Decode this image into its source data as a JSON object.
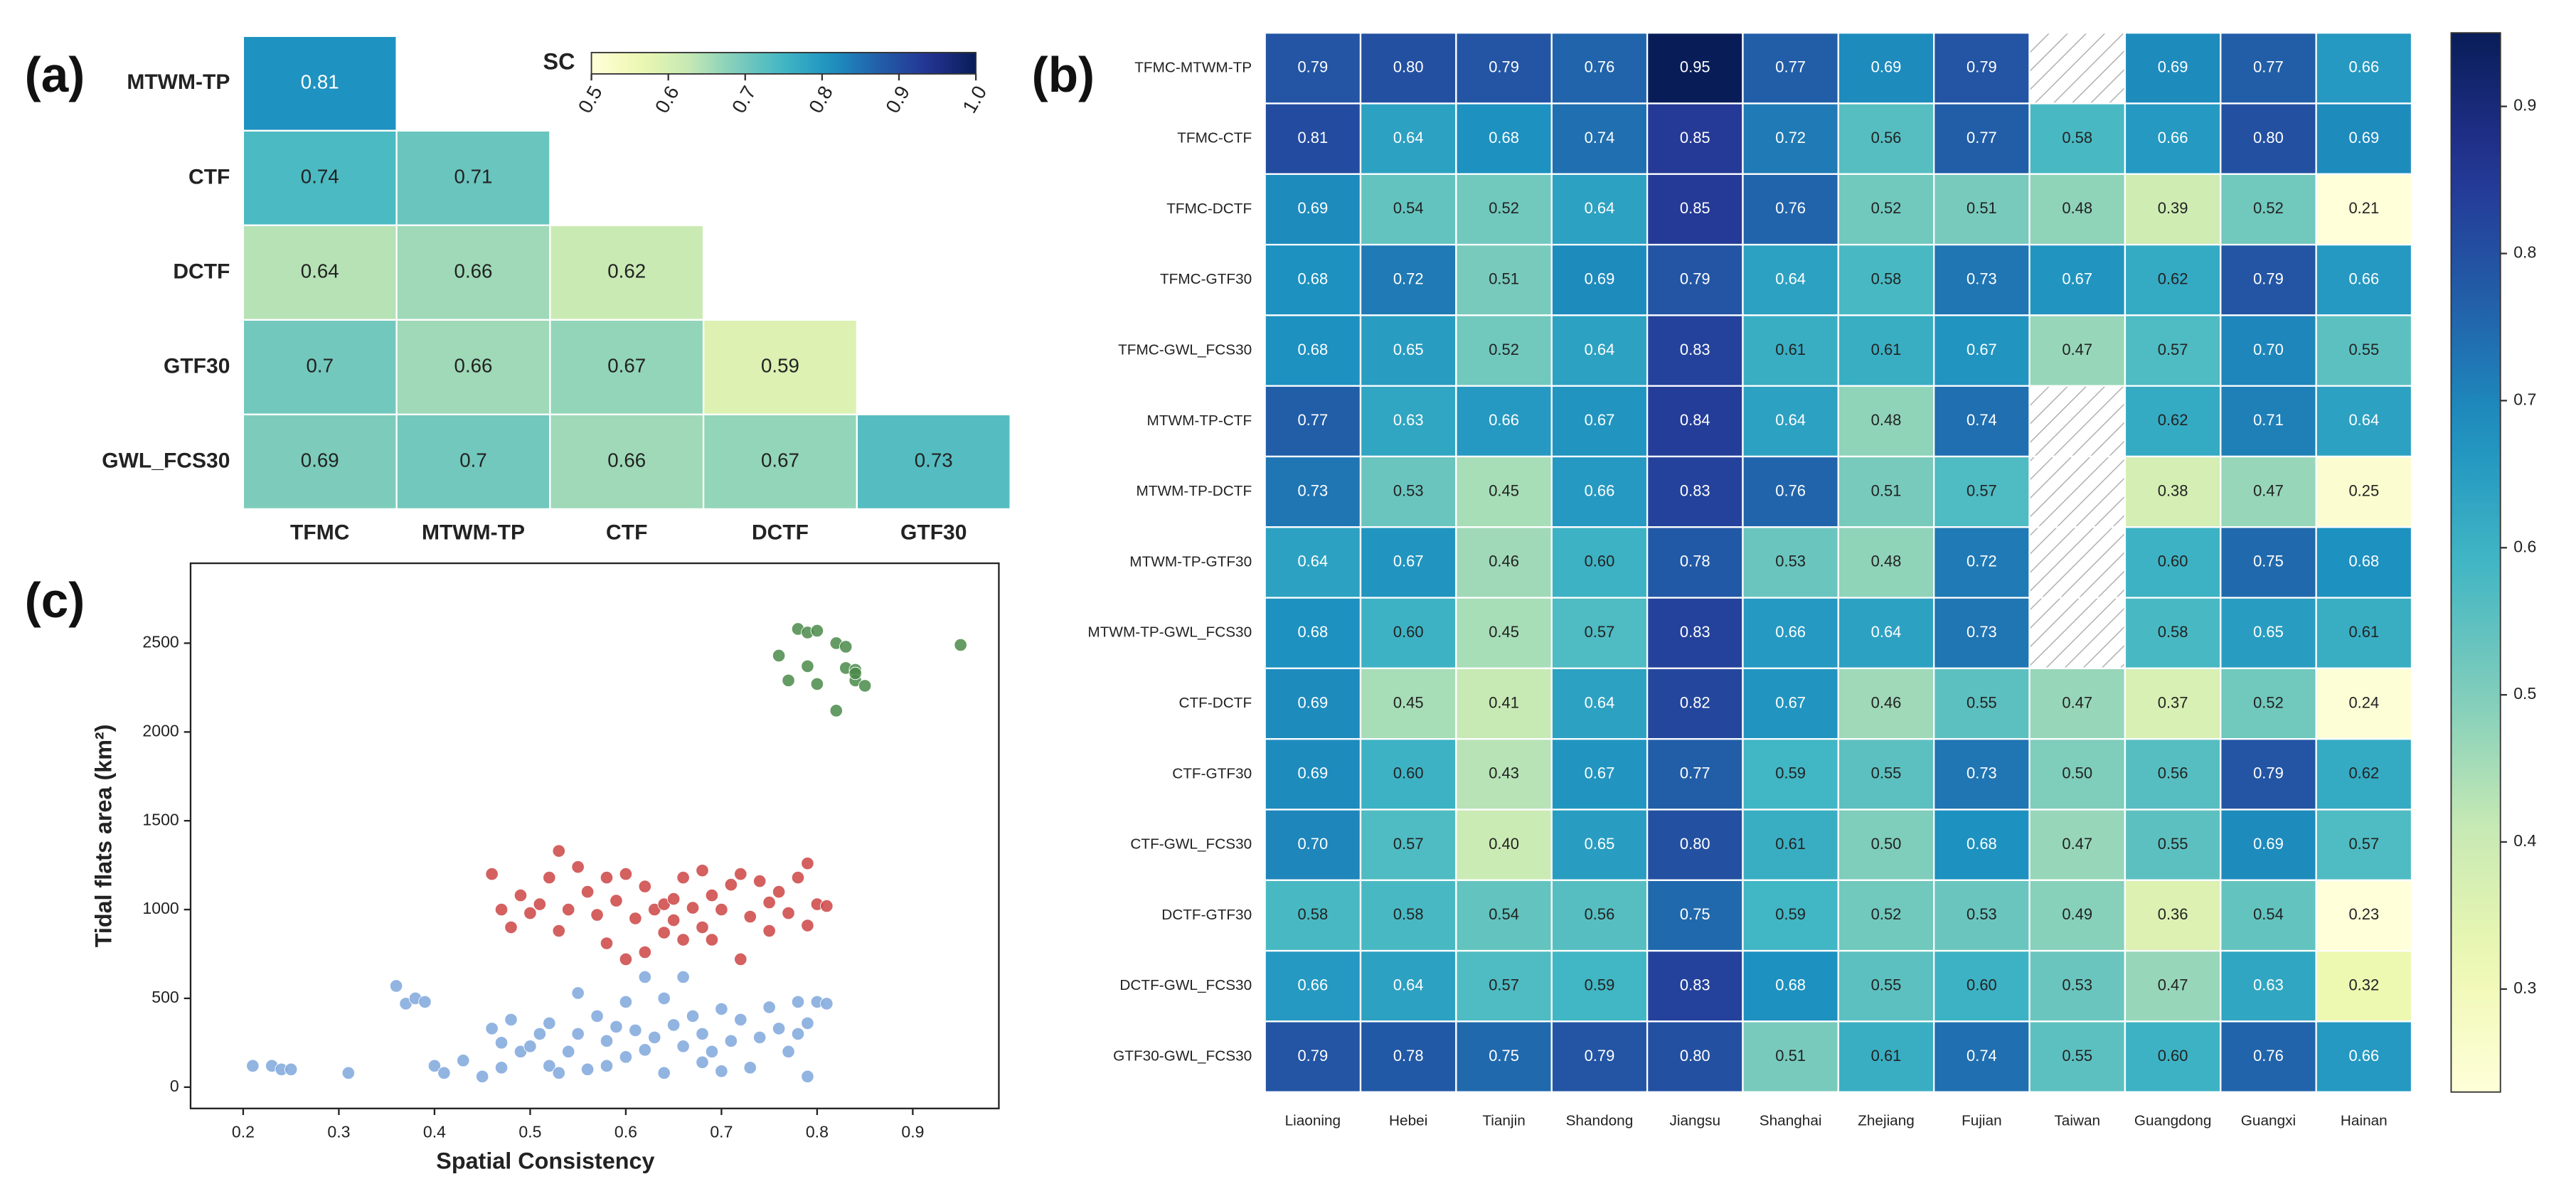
{
  "chart_data": [
    {
      "type": "heatmap",
      "label": "(a)",
      "x_categories": [
        "TFMC",
        "MTWM-TP",
        "CTF",
        "DCTF",
        "GTF30"
      ],
      "y_categories": [
        "MTWM-TP",
        "CTF",
        "DCTF",
        "GTF30",
        "GWL_FCS30"
      ],
      "values": [
        [
          0.81,
          null,
          null,
          null,
          null
        ],
        [
          0.74,
          0.71,
          null,
          null,
          null
        ],
        [
          0.64,
          0.66,
          0.62,
          null,
          null
        ],
        [
          0.7,
          0.66,
          0.67,
          0.59,
          null
        ],
        [
          0.69,
          0.7,
          0.66,
          0.67,
          0.73
        ]
      ],
      "colorbar_label": "SC",
      "colorbar_position": "top",
      "clim": [
        0.5,
        1.0
      ],
      "cticks": [
        0.5,
        0.6,
        0.7,
        0.8,
        0.9,
        {
          "value": 1,
          "label": "1.0"
        }
      ],
      "colormap": [
        "#ffffd9",
        "#edf8b1",
        "#c7e9b4",
        "#7fcdbb",
        "#41b6c4",
        "#1d91c0",
        "#225ea8",
        "#253494",
        "#081d58"
      ]
    },
    {
      "type": "heatmap",
      "label": "(b)",
      "x_categories": [
        "Liaoning",
        "Hebei",
        "Tianjin",
        "Shandong",
        "Jiangsu",
        "Shanghai",
        "Zhejiang",
        "Fujian",
        "Taiwan",
        "Guangdong",
        "Guangxi",
        "Hainan"
      ],
      "y_categories": [
        "TFMC-MTWM-TP",
        "TFMC-CTF",
        "TFMC-DCTF",
        "TFMC-GTF30",
        "TFMC-GWL_FCS30",
        "MTWM-TP-CTF",
        "MTWM-TP-DCTF",
        "MTWM-TP-GTF30",
        "MTWM-TP-GWL_FCS30",
        "CTF-DCTF",
        "CTF-GTF30",
        "CTF-GWL_FCS30",
        "DCTF-GTF30",
        "DCTF-GWL_FCS30",
        "GTF30-GWL_FCS30"
      ],
      "values": [
        [
          0.79,
          0.8,
          0.79,
          0.76,
          0.95,
          0.77,
          0.69,
          0.79,
          null,
          0.69,
          0.77,
          0.66
        ],
        [
          0.81,
          0.64,
          0.68,
          0.74,
          0.85,
          0.72,
          0.56,
          0.77,
          0.58,
          0.66,
          0.8,
          0.69
        ],
        [
          0.69,
          0.54,
          0.52,
          0.64,
          0.85,
          0.76,
          0.52,
          0.51,
          0.48,
          0.39,
          0.52,
          0.21
        ],
        [
          0.68,
          0.72,
          0.51,
          0.69,
          0.79,
          0.64,
          0.58,
          0.73,
          0.67,
          0.62,
          0.79,
          0.66
        ],
        [
          0.68,
          0.65,
          0.52,
          0.64,
          0.83,
          0.61,
          0.61,
          0.67,
          0.47,
          0.57,
          0.7,
          0.55
        ],
        [
          0.77,
          0.63,
          0.66,
          0.67,
          0.84,
          0.64,
          0.48,
          0.74,
          null,
          0.62,
          0.71,
          0.64
        ],
        [
          0.73,
          0.53,
          0.45,
          0.66,
          0.83,
          0.76,
          0.51,
          0.57,
          null,
          0.38,
          0.47,
          0.25
        ],
        [
          0.64,
          0.67,
          0.46,
          0.6,
          0.78,
          0.53,
          0.48,
          0.72,
          null,
          0.6,
          0.75,
          0.68
        ],
        [
          0.68,
          0.6,
          0.45,
          0.57,
          0.83,
          0.66,
          0.64,
          0.73,
          null,
          0.58,
          0.65,
          0.61
        ],
        [
          0.69,
          0.45,
          0.41,
          0.64,
          0.82,
          0.67,
          0.46,
          0.55,
          0.47,
          0.37,
          0.52,
          0.24
        ],
        [
          0.69,
          0.6,
          0.43,
          0.67,
          0.77,
          0.59,
          0.55,
          0.73,
          0.5,
          0.56,
          0.79,
          0.62
        ],
        [
          0.7,
          0.57,
          0.4,
          0.65,
          0.8,
          0.61,
          0.5,
          0.68,
          0.47,
          0.55,
          0.69,
          0.57
        ],
        [
          0.58,
          0.58,
          0.54,
          0.56,
          0.75,
          0.59,
          0.52,
          0.53,
          0.49,
          0.36,
          0.54,
          0.23
        ],
        [
          0.66,
          0.64,
          0.57,
          0.59,
          0.83,
          0.68,
          0.55,
          0.6,
          0.53,
          0.47,
          0.63,
          0.32
        ],
        [
          0.79,
          0.78,
          0.75,
          0.79,
          0.8,
          0.51,
          0.61,
          0.74,
          0.55,
          0.6,
          0.76,
          0.66
        ]
      ],
      "value_labels": [
        [
          "0.79",
          "0.80",
          "0.79",
          "0.76",
          "0.95",
          "0.77",
          "0.69",
          "0.79",
          null,
          "0.69",
          "0.77",
          "0.66"
        ],
        [
          "0.81",
          "0.64",
          "0.68",
          "0.74",
          "0.85",
          "0.72",
          "0.56",
          "0.77",
          "0.58",
          "0.66",
          "0.80",
          "0.69"
        ],
        [
          "0.69",
          "0.54",
          "0.52",
          "0.64",
          "0.85",
          "0.76",
          "0.52",
          "0.51",
          "0.48",
          "0.39",
          "0.52",
          "0.21"
        ],
        [
          "0.68",
          "0.72",
          "0.51",
          "0.69",
          "0.79",
          "0.64",
          "0.58",
          "0.73",
          "0.67",
          "0.62",
          "0.79",
          "0.66"
        ],
        [
          "0.68",
          "0.65",
          "0.52",
          "0.64",
          "0.83",
          "0.61",
          "0.61",
          "0.67",
          "0.47",
          "0.57",
          "0.70",
          "0.55"
        ],
        [
          "0.77",
          "0.63",
          "0.66",
          "0.67",
          "0.84",
          "0.64",
          "0.48",
          "0.74",
          null,
          "0.62",
          "0.71",
          "0.64"
        ],
        [
          "0.73",
          "0.53",
          "0.45",
          "0.66",
          "0.83",
          "0.76",
          "0.51",
          "0.57",
          null,
          "0.38",
          "0.47",
          "0.25"
        ],
        [
          "0.64",
          "0.67",
          "0.46",
          "0.60",
          "0.78",
          "0.53",
          "0.48",
          "0.72",
          null,
          "0.60",
          "0.75",
          "0.68"
        ],
        [
          "0.68",
          "0.60",
          "0.45",
          "0.57",
          "0.83",
          "0.66",
          "0.64",
          "0.73",
          null,
          "0.58",
          "0.65",
          "0.61"
        ],
        [
          "0.69",
          "0.45",
          "0.41",
          "0.64",
          "0.82",
          "0.67",
          "0.46",
          "0.55",
          "0.47",
          "0.37",
          "0.52",
          "0.24"
        ],
        [
          "0.69",
          "0.60",
          "0.43",
          "0.67",
          "0.77",
          "0.59",
          "0.55",
          "0.73",
          "0.50",
          "0.56",
          "0.79",
          "0.62"
        ],
        [
          "0.70",
          "0.57",
          "0.40",
          "0.65",
          "0.80",
          "0.61",
          "0.50",
          "0.68",
          "0.47",
          "0.55",
          "0.69",
          "0.57"
        ],
        [
          "0.58",
          "0.58",
          "0.54",
          "0.56",
          "0.75",
          "0.59",
          "0.52",
          "0.53",
          "0.49",
          "0.36",
          "0.54",
          "0.23"
        ],
        [
          "0.66",
          "0.64",
          "0.57",
          "0.59",
          "0.83",
          "0.68",
          "0.55",
          "0.60",
          "0.53",
          "0.47",
          "0.63",
          "0.32"
        ],
        [
          "0.79",
          "0.78",
          "0.75",
          "0.79",
          "0.80",
          "0.51",
          "0.61",
          "0.74",
          "0.55",
          "0.60",
          "0.76",
          "0.66"
        ]
      ],
      "missing": "hatched",
      "colorbar_position": "right",
      "clim": [
        0.23,
        0.95
      ],
      "cticks": [
        0.3,
        0.4,
        0.5,
        0.6,
        0.7,
        0.8,
        0.9
      ],
      "colormap": [
        "#ffffd9",
        "#edf8b1",
        "#c7e9b4",
        "#7fcdbb",
        "#41b6c4",
        "#1d91c0",
        "#225ea8",
        "#253494",
        "#081d58"
      ]
    },
    {
      "type": "scatter",
      "label": "(c)",
      "xlabel": "Spatial Consistency",
      "ylabel": "Tidal flats area (km²)",
      "xlim": [
        0.145,
        0.99
      ],
      "ylim": [
        -120,
        2950
      ],
      "xticks": [
        0.2,
        0.3,
        0.4,
        0.5,
        0.6,
        0.7,
        0.8,
        0.9
      ],
      "yticks": [
        0,
        500,
        1000,
        1500,
        2000,
        2500
      ],
      "grid": false,
      "series": [
        {
          "color": "#4a8a4a",
          "x": [
            0.76,
            0.78,
            0.79,
            0.8,
            0.77,
            0.8,
            0.82,
            0.83,
            0.83,
            0.84,
            0.84,
            0.85,
            0.82,
            0.84,
            0.95,
            0.79
          ],
          "values": [
            2430,
            2580,
            2560,
            2570,
            2290,
            2270,
            2500,
            2480,
            2360,
            2350,
            2290,
            2260,
            2120,
            2330,
            2490,
            2370
          ]
        },
        {
          "color": "#cc4444",
          "x": [
            0.46,
            0.47,
            0.48,
            0.49,
            0.5,
            0.51,
            0.52,
            0.53,
            0.53,
            0.54,
            0.55,
            0.56,
            0.57,
            0.58,
            0.58,
            0.59,
            0.6,
            0.6,
            0.61,
            0.62,
            0.62,
            0.63,
            0.64,
            0.64,
            0.65,
            0.65,
            0.66,
            0.66,
            0.67,
            0.68,
            0.68,
            0.69,
            0.69,
            0.7,
            0.71,
            0.72,
            0.72,
            0.73,
            0.74,
            0.75,
            0.76,
            0.77,
            0.78,
            0.79,
            0.8,
            0.81,
            0.79,
            0.75
          ],
          "values": [
            1200,
            1000,
            900,
            1080,
            980,
            1030,
            1180,
            880,
            1330,
            1000,
            1240,
            1100,
            970,
            1180,
            810,
            1050,
            720,
            1200,
            950,
            1130,
            760,
            1000,
            1030,
            870,
            1060,
            940,
            1180,
            830,
            1010,
            1220,
            900,
            1080,
            830,
            1000,
            1140,
            1200,
            720,
            960,
            1160,
            1040,
            1100,
            980,
            1180,
            1260,
            1030,
            1020,
            910,
            880
          ]
        },
        {
          "color": "#7fa7dc",
          "x": [
            0.21,
            0.23,
            0.24,
            0.25,
            0.31,
            0.36,
            0.37,
            0.38,
            0.39,
            0.4,
            0.41,
            0.43,
            0.45,
            0.46,
            0.47,
            0.47,
            0.48,
            0.49,
            0.5,
            0.51,
            0.52,
            0.52,
            0.53,
            0.54,
            0.55,
            0.55,
            0.56,
            0.57,
            0.58,
            0.58,
            0.59,
            0.6,
            0.6,
            0.61,
            0.62,
            0.62,
            0.63,
            0.64,
            0.64,
            0.65,
            0.66,
            0.66,
            0.67,
            0.68,
            0.68,
            0.69,
            0.7,
            0.7,
            0.71,
            0.72,
            0.73,
            0.74,
            0.75,
            0.76,
            0.77,
            0.78,
            0.79,
            0.79,
            0.8,
            0.81,
            0.78
          ],
          "values": [
            120,
            120,
            100,
            100,
            80,
            570,
            470,
            500,
            480,
            120,
            80,
            150,
            60,
            330,
            250,
            110,
            380,
            200,
            230,
            300,
            120,
            360,
            80,
            200,
            530,
            300,
            100,
            400,
            260,
            120,
            340,
            170,
            480,
            320,
            620,
            210,
            280,
            80,
            500,
            350,
            230,
            620,
            400,
            140,
            300,
            200,
            440,
            90,
            260,
            380,
            110,
            280,
            450,
            330,
            200,
            480,
            60,
            360,
            480,
            470,
            300
          ]
        }
      ]
    }
  ]
}
